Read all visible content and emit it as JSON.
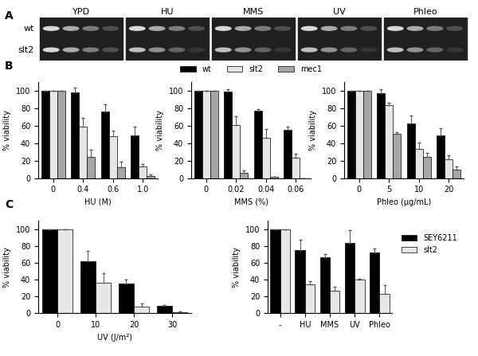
{
  "panel_a": {
    "label": "A",
    "columns": [
      "YPD",
      "HU",
      "MMS",
      "UV",
      "Phleo"
    ],
    "rows": [
      "wt",
      "slt2"
    ]
  },
  "chart_data": [
    {
      "type": "bar",
      "label": "B",
      "xlabel": "HU (M)",
      "ylabel": "% viability",
      "categories": [
        "0",
        "0.4",
        "0.6",
        "1.0"
      ],
      "ylim": [
        0,
        110
      ],
      "yticks": [
        0,
        20,
        40,
        60,
        80,
        100
      ],
      "series": [
        {
          "name": "wt",
          "color": "#000000",
          "values": [
            100,
            98,
            76,
            49
          ],
          "errors": [
            0,
            5,
            8,
            10
          ]
        },
        {
          "name": "slt2",
          "color": "#e6e6e6",
          "values": [
            100,
            59,
            48,
            13
          ],
          "errors": [
            0,
            10,
            6,
            3
          ]
        },
        {
          "name": "mec1",
          "color": "#a6a6a6",
          "values": [
            100,
            24,
            12,
            2
          ],
          "errors": [
            0,
            8,
            7,
            2
          ]
        }
      ]
    },
    {
      "type": "bar",
      "xlabel": "MMS (%)",
      "ylabel": "% viability",
      "legend": "top",
      "categories": [
        "0",
        "0.02",
        "0.04",
        "0.06"
      ],
      "ylim": [
        0,
        110
      ],
      "yticks": [
        0,
        20,
        40,
        60,
        80,
        100
      ],
      "series": [
        {
          "name": "wt",
          "color": "#000000",
          "values": [
            100,
            99,
            77,
            55
          ],
          "errors": [
            0,
            3,
            2,
            4
          ]
        },
        {
          "name": "slt2",
          "color": "#e6e6e6",
          "values": [
            100,
            61,
            46,
            23
          ],
          "errors": [
            0,
            10,
            10,
            5
          ]
        },
        {
          "name": "mec1",
          "color": "#a6a6a6",
          "values": [
            100,
            6,
            1,
            0
          ],
          "errors": [
            0,
            3,
            0.5,
            0
          ]
        }
      ]
    },
    {
      "type": "bar",
      "xlabel": "Phleo (µg/mL)",
      "ylabel": "% viability",
      "categories": [
        "0",
        "5",
        "10",
        "20"
      ],
      "ylim": [
        0,
        110
      ],
      "yticks": [
        0,
        20,
        40,
        60,
        80,
        100
      ],
      "series": [
        {
          "name": "wt",
          "color": "#000000",
          "values": [
            100,
            97,
            62,
            49
          ],
          "errors": [
            0,
            5,
            10,
            8
          ]
        },
        {
          "name": "slt2",
          "color": "#e6e6e6",
          "values": [
            100,
            83,
            33,
            21
          ],
          "errors": [
            0,
            3,
            8,
            5
          ]
        },
        {
          "name": "mec1",
          "color": "#a6a6a6",
          "values": [
            100,
            51,
            24,
            10
          ],
          "errors": [
            0,
            1,
            5,
            3
          ]
        }
      ]
    },
    {
      "type": "bar",
      "xlabel": "UV (J/m²)",
      "ylabel": "% viability",
      "categories": [
        "0",
        "10",
        "20",
        "30"
      ],
      "ylim": [
        0,
        110
      ],
      "yticks": [
        0,
        20,
        40,
        60,
        80,
        100
      ],
      "series": [
        {
          "name": "wt",
          "color": "#000000",
          "values": [
            100,
            62,
            35,
            9
          ],
          "errors": [
            0,
            12,
            5,
            1
          ]
        },
        {
          "name": "slt2",
          "color": "#e6e6e6",
          "values": [
            100,
            36,
            8,
            1
          ],
          "errors": [
            0,
            12,
            4,
            1
          ]
        }
      ]
    },
    {
      "type": "bar",
      "label": "C",
      "ylabel": "% viability",
      "legend": "right",
      "categories": [
        "-",
        "HU",
        "MMS",
        "UV",
        "Phleo"
      ],
      "ylim": [
        0,
        110
      ],
      "yticks": [
        0,
        20,
        40,
        60,
        80,
        100
      ],
      "series": [
        {
          "name": "SEY6211",
          "color": "#000000",
          "values": [
            100,
            75,
            67,
            84,
            72
          ],
          "errors": [
            0,
            12,
            3,
            15,
            5
          ]
        },
        {
          "name": "slt2",
          "color": "#e6e6e6",
          "values": [
            100,
            34,
            27,
            40,
            23
          ],
          "errors": [
            0,
            4,
            5,
            1,
            10
          ]
        }
      ]
    }
  ]
}
